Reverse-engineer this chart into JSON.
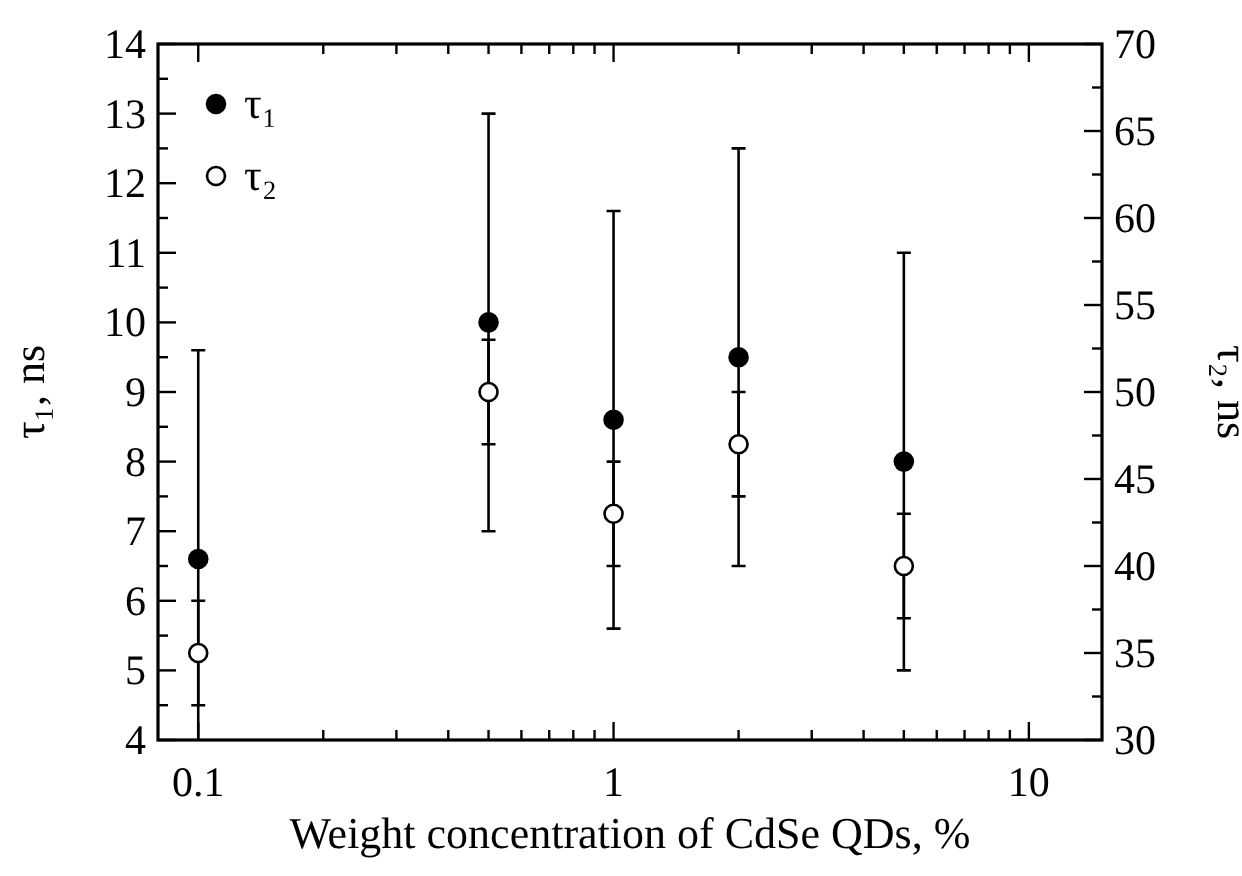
{
  "chart_data": {
    "type": "scatter",
    "xlabel": "Weight concentration of CdSe QDs, %",
    "ylabel": "τ₁, ns",
    "y2label": "τ₂, ns",
    "log": "x",
    "xlim": [
      0.08,
      15
    ],
    "xticks": [
      0.1,
      {
        "value": 0.2,
        "label": null
      },
      {
        "value": 0.3,
        "label": null
      },
      {
        "value": 0.4,
        "label": null
      },
      {
        "value": 0.5,
        "label": null
      },
      {
        "value": 0.6,
        "label": null
      },
      {
        "value": 0.7,
        "label": null
      },
      {
        "value": 0.8,
        "label": null
      },
      {
        "value": 0.9,
        "label": null
      },
      1,
      {
        "value": 2,
        "label": null
      },
      {
        "value": 3,
        "label": null
      },
      {
        "value": 4,
        "label": null
      },
      {
        "value": 5,
        "label": null
      },
      {
        "value": 6,
        "label": null
      },
      {
        "value": 7,
        "label": null
      },
      {
        "value": 8,
        "label": null
      },
      {
        "value": 9,
        "label": null
      },
      10
    ],
    "ylim": [
      4,
      14
    ],
    "yticks": [
      4,
      {
        "value": 4.5,
        "label": null
      },
      5,
      {
        "value": 5.5,
        "label": null
      },
      6,
      {
        "value": 6.5,
        "label": null
      },
      7,
      {
        "value": 7.5,
        "label": null
      },
      8,
      {
        "value": 8.5,
        "label": null
      },
      9,
      {
        "value": 9.5,
        "label": null
      },
      10,
      {
        "value": 10.5,
        "label": null
      },
      11,
      {
        "value": 11.5,
        "label": null
      },
      12,
      {
        "value": 12.5,
        "label": null
      },
      13,
      {
        "value": 13.5,
        "label": null
      },
      14
    ],
    "y2lim": [
      30,
      70
    ],
    "y2ticks": [
      30,
      {
        "value": 32.5,
        "label": null
      },
      35,
      {
        "value": 37.5,
        "label": null
      },
      40,
      {
        "value": 42.5,
        "label": null
      },
      45,
      {
        "value": 47.5,
        "label": null
      },
      50,
      {
        "value": 52.5,
        "label": null
      },
      55,
      {
        "value": 57.5,
        "label": null
      },
      60,
      {
        "value": 62.5,
        "label": null
      },
      65,
      {
        "value": 67.5,
        "label": null
      },
      70
    ],
    "x": [
      0.1,
      0.5,
      1,
      2,
      5
    ],
    "marker": "circle",
    "legend": "top left",
    "grid": false,
    "series": [
      {
        "name": "τ₁",
        "color": "#000000",
        "values": [
          6.6,
          10,
          8.6,
          9.5,
          8
        ],
        "errors": [
          [
            4,
            9.6
          ],
          3,
          3,
          3,
          3
        ]
      },
      {
        "name": "τ₂",
        "color": "#000000",
        "axis": "y2",
        "values": [
          35,
          50,
          43,
          47,
          40
        ],
        "errors": [
          3,
          3,
          3,
          3,
          3
        ]
      }
    ]
  }
}
